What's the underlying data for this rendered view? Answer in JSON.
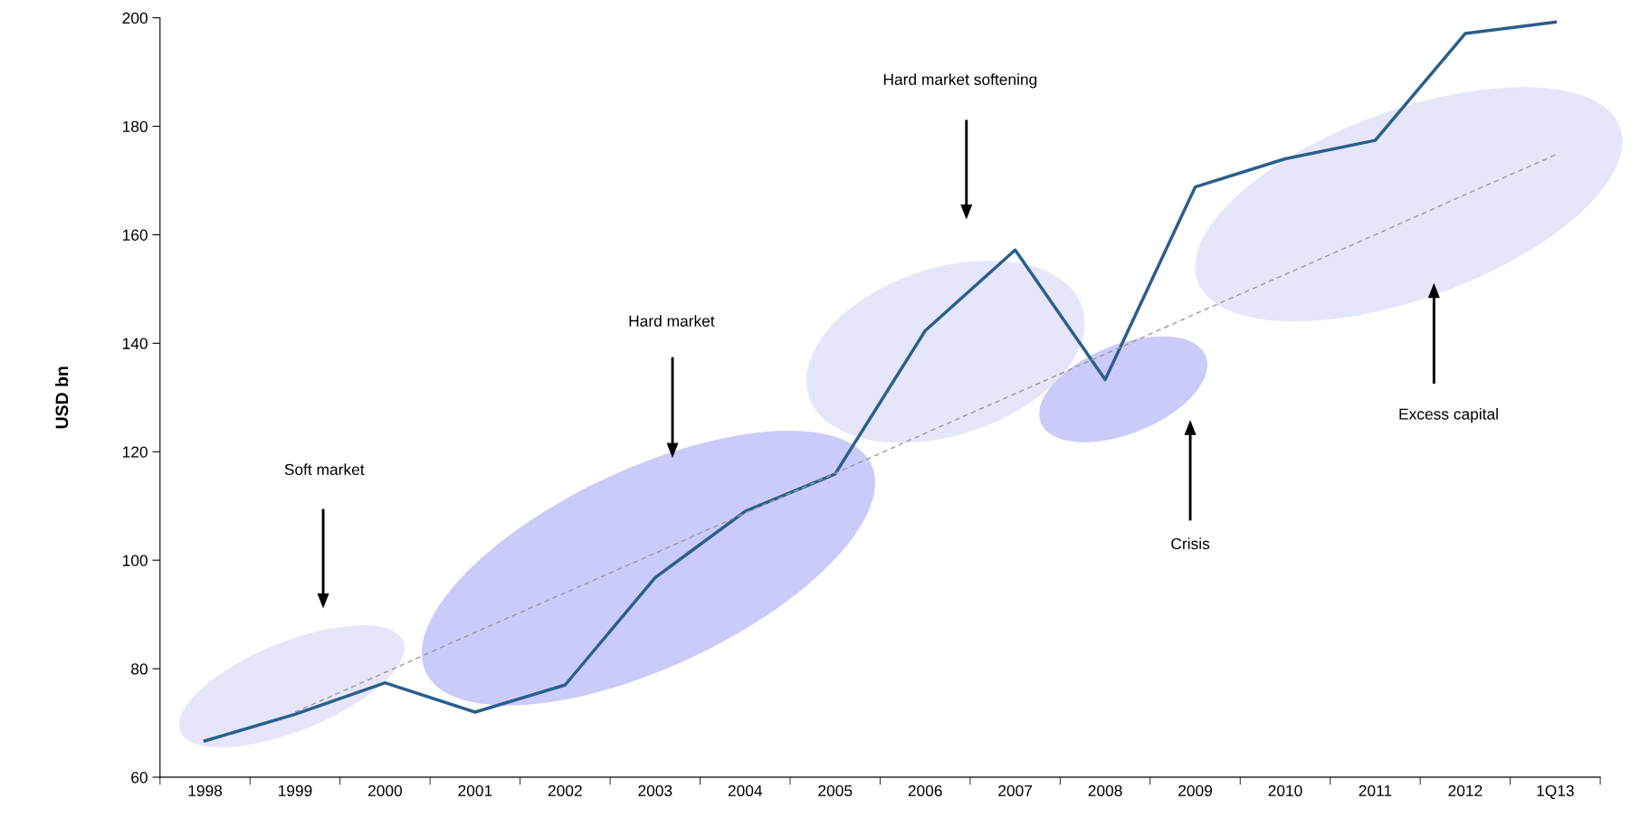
{
  "chart_data": {
    "type": "line",
    "ylabel": "USD bn",
    "categories": [
      "1998",
      "1999",
      "2000",
      "2001",
      "2002",
      "2003",
      "2004",
      "2005",
      "2006",
      "2007",
      "2008",
      "2009",
      "2010",
      "2011",
      "2012",
      "1Q13"
    ],
    "series": [
      {
        "color": "#2b5f8c",
        "values": [
          66.7,
          71.6,
          77.4,
          72,
          77,
          96.8,
          109,
          115.9,
          142.3,
          157.2,
          133.3,
          168.8,
          174,
          177.4,
          197.1,
          199.2
        ]
      },
      {
        "type": "line",
        "color": "#9a9a9a",
        "line_style": "dashed",
        "values": [
          null,
          72,
          79.3,
          86.7,
          94,
          101.3,
          108.7,
          116,
          123.4,
          130.7,
          138,
          145.4,
          152.7,
          160,
          167.4,
          174.7
        ]
      }
    ],
    "ylim": [
      60,
      200
    ],
    "yticks": [
      60,
      80,
      100,
      120,
      140,
      160,
      180,
      200
    ],
    "grid": false,
    "legend": false,
    "annotations": [
      "Soft market",
      "Hard market",
      "Hard market softening",
      "Crisis",
      "Excess capital"
    ]
  }
}
